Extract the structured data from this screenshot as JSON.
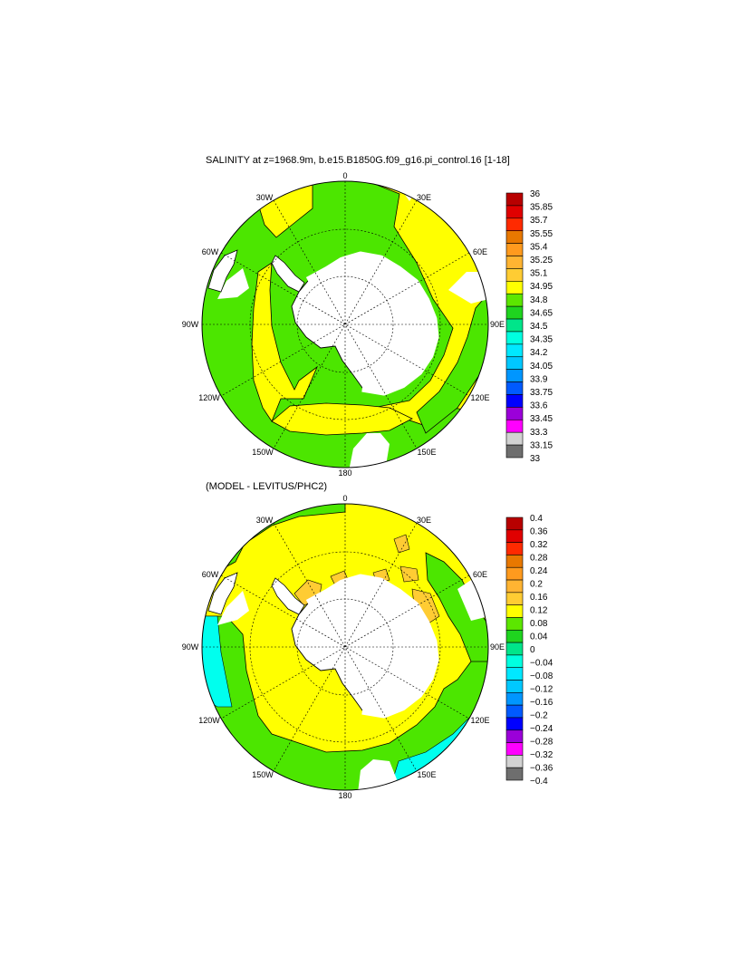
{
  "top_panel": {
    "title": "SALINITY at z=1968.9m, b.e15.B1850G.f09_g16.pi_control.16 [1-18]",
    "longitude_labels": [
      "0",
      "30E",
      "60E",
      "90E",
      "120E",
      "150E",
      "180",
      "150W",
      "120W",
      "90W",
      "60W",
      "30W"
    ],
    "colorbar_labels": [
      "36",
      "35.85",
      "35.7",
      "35.55",
      "35.4",
      "35.25",
      "35.1",
      "34.95",
      "34.8",
      "34.65",
      "34.5",
      "34.35",
      "34.2",
      "34.05",
      "33.9",
      "33.75",
      "33.6",
      "33.45",
      "33.3",
      "33.15",
      "33"
    ]
  },
  "bottom_panel": {
    "title": "(MODEL - LEVITUS/PHC2)",
    "longitude_labels": [
      "0",
      "30E",
      "60E",
      "90E",
      "120E",
      "150E",
      "180",
      "150W",
      "120W",
      "90W",
      "60W",
      "30W"
    ],
    "colorbar_labels": [
      "0.4",
      "0.36",
      "0.32",
      "0.28",
      "0.24",
      "0.2",
      "0.16",
      "0.12",
      "0.08",
      "0.04",
      "0",
      "−0.04",
      "−0.08",
      "−0.12",
      "−0.16",
      "−0.2",
      "−0.24",
      "−0.28",
      "−0.32",
      "−0.36",
      "−0.4"
    ]
  },
  "colorbar_colors": [
    "#b80000",
    "#e00000",
    "#ff2a00",
    "#e87800",
    "#ff9a1e",
    "#ffb432",
    "#ffcc33",
    "#ffff00",
    "#5ce600",
    "#1fd41f",
    "#00e58a",
    "#00ffe0",
    "#00e8ff",
    "#00c8ff",
    "#0096ff",
    "#005aff",
    "#0000ff",
    "#9b00d9",
    "#ff00ff",
    "#d2d2d2",
    "#6e6e6e"
  ],
  "map_colors": {
    "yellow": "#ffff00",
    "green": "#4ce600",
    "cyan": "#00ffee",
    "orange_light": "#ffcc33",
    "land": "#ffffff"
  }
}
